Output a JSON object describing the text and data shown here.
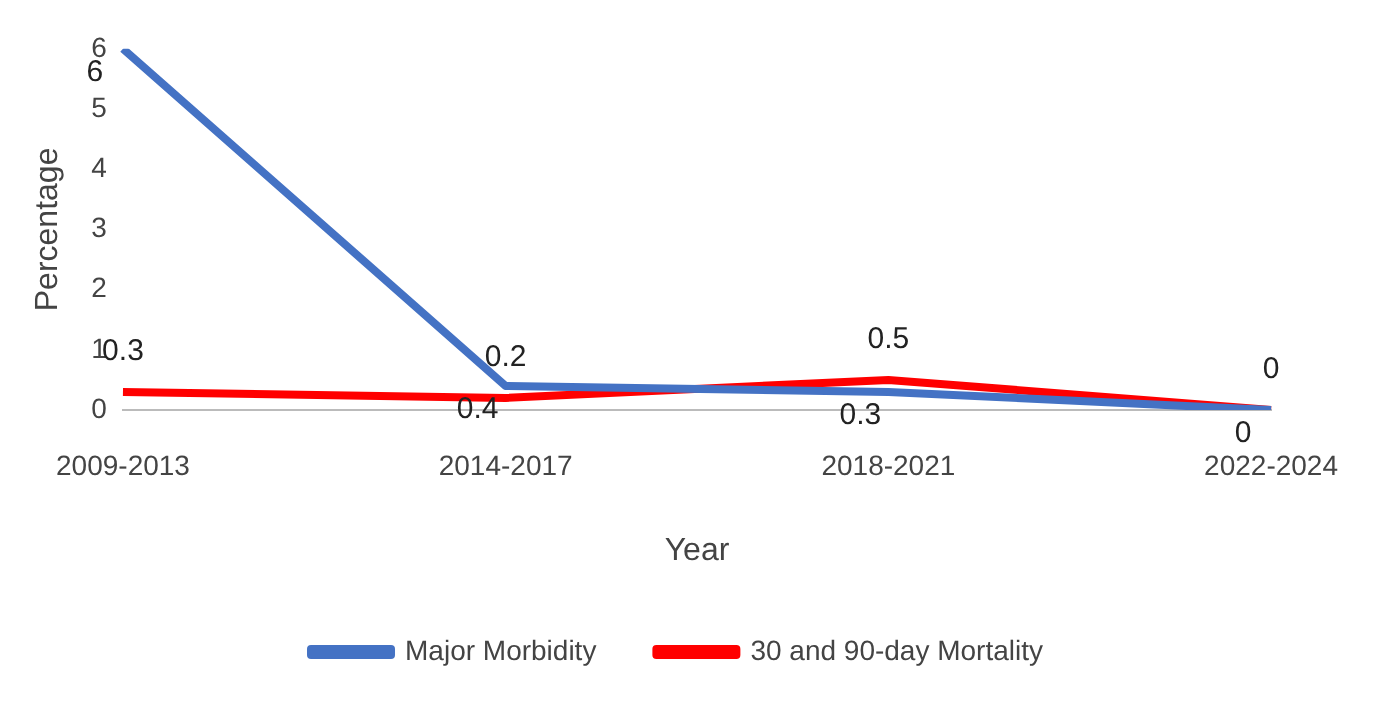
{
  "chart_data": {
    "type": "line",
    "xlabel": "Year",
    "ylabel": "Percentage",
    "categories": [
      "2009-2013",
      "2014-2017",
      "2018-2021",
      "2022-2024"
    ],
    "series": [
      {
        "name": "Major Morbidity",
        "color": "#4472c4",
        "values": [
          6,
          0.4,
          0.3,
          0
        ]
      },
      {
        "name": "30 and 90-day Mortality",
        "color": "#ff0000",
        "values": [
          0.3,
          0.2,
          0.5,
          0
        ]
      }
    ],
    "ylim": [
      0,
      6
    ],
    "yticks": [
      0,
      1,
      2,
      3,
      4,
      5,
      6
    ],
    "grid": false,
    "legend": "bottom",
    "marker": "none",
    "line_style": "solid",
    "data_labels": true
  }
}
